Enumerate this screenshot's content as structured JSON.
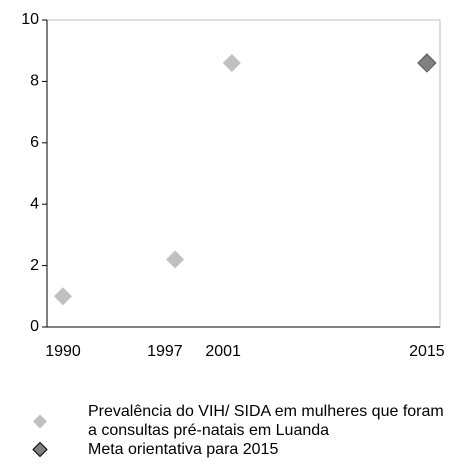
{
  "chart_data": {
    "type": "scatter",
    "series": [
      {
        "name": "Prevalência do VIH/ SIDA em mulheres que foram a consultas pré-natais em Luanda",
        "color": "#c0c0c0",
        "x": [
          1990,
          1997.7,
          2001.6
        ],
        "values": [
          1,
          2.2,
          8.6
        ]
      },
      {
        "name": "Meta orientativa para 2015",
        "color": "#808080",
        "x": [
          2015
        ],
        "values": [
          8.6
        ]
      }
    ],
    "xlim": [
      1988.9,
      2015.9
    ],
    "xticks": [
      1990,
      1997,
      2001,
      2015
    ],
    "ylim": [
      0,
      10
    ],
    "yticks": [
      0,
      2,
      4,
      6,
      8,
      10
    ],
    "legend": "bottom"
  }
}
